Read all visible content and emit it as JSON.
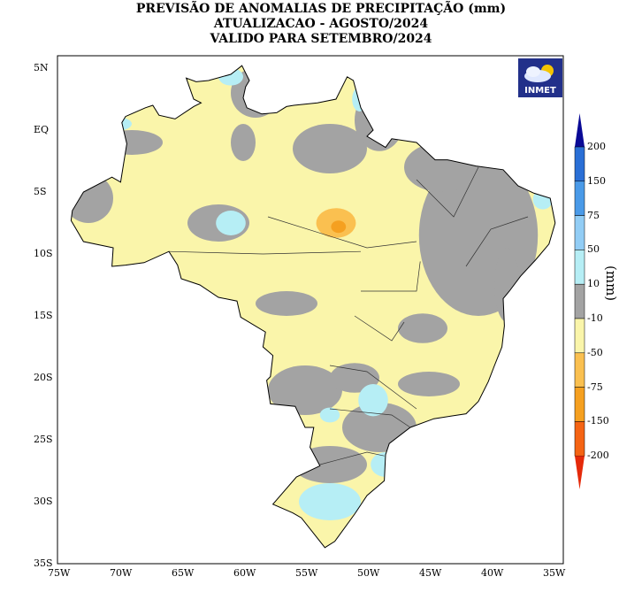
{
  "title": {
    "line1": "PREVISÃO DE ANOMALIAS DE PRECIPITAÇÃO (mm)",
    "line2": "ATUALIZACAO - AGOSTO/2024",
    "line3": "VALIDO PARA SETEMBRO/2024"
  },
  "logo": {
    "text": "INMET",
    "icon": "cloud-sun-icon"
  },
  "axes": {
    "lon_labels": [
      "75W",
      "70W",
      "65W",
      "60W",
      "55W",
      "50W",
      "45W",
      "40W",
      "35W"
    ],
    "lat_labels": [
      "5N",
      "EQ",
      "5S",
      "10S",
      "15S",
      "20S",
      "25S",
      "30S",
      "35S"
    ]
  },
  "legend": {
    "unit": "(mm)",
    "labels": [
      "200",
      "150",
      "75",
      "50",
      "10",
      "-10",
      "-50",
      "-75",
      "-150",
      "-200"
    ],
    "colors": [
      "#0a0a96",
      "#2a6fd6",
      "#4a9ae8",
      "#92cdf5",
      "#b6eef5",
      "#a3a3a3",
      "#faf5aa",
      "#fac050",
      "#f5a020",
      "#f56414",
      "#e52a0a"
    ]
  }
}
